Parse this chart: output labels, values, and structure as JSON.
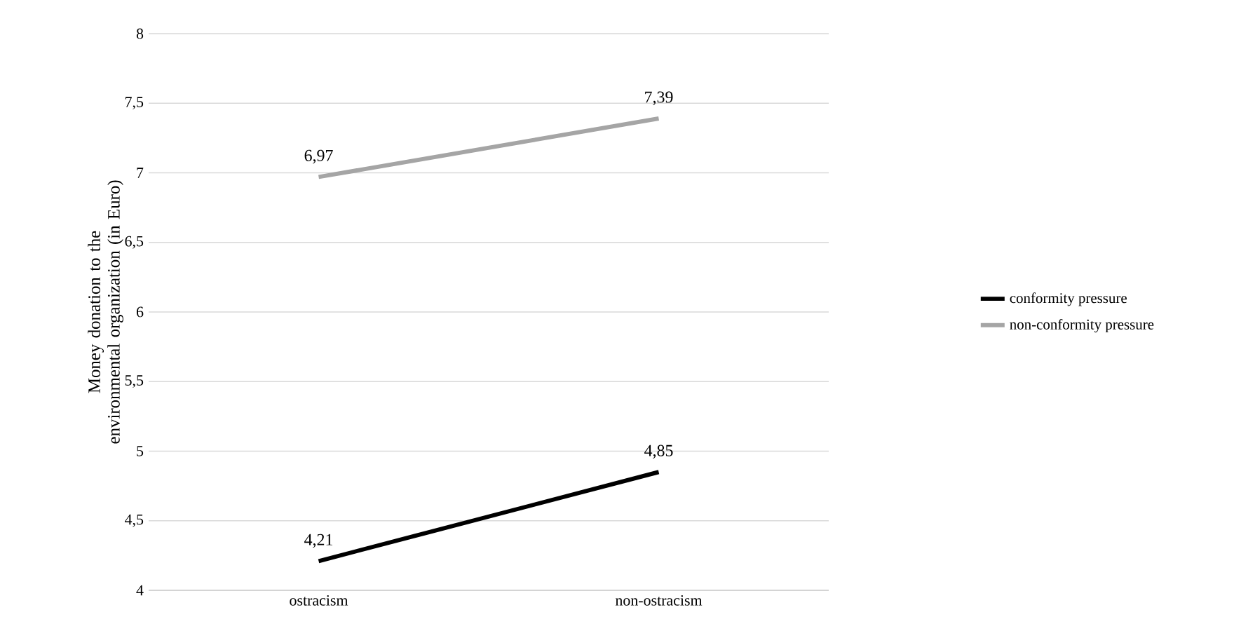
{
  "chart_data": {
    "type": "line",
    "ylabel": "Money donation to the environmental organization (in Euro)",
    "categories": [
      "ostracism",
      "non-ostracism"
    ],
    "series": [
      {
        "name": "conformity pressure",
        "color": "#000000",
        "values": [
          4.21,
          4.85
        ],
        "value_labels": [
          "4,21",
          "4,85"
        ]
      },
      {
        "name": "non-conformity pressure",
        "color": "#a5a5a5",
        "values": [
          6.97,
          7.39
        ],
        "value_labels": [
          "6,97",
          "7,39"
        ]
      }
    ],
    "ylim": [
      4,
      8
    ],
    "yticks": [
      4,
      {
        "value": 4.5,
        "label": "4,5"
      },
      5,
      {
        "value": 5.5,
        "label": "5,5"
      },
      6,
      {
        "value": 6.5,
        "label": "6,5"
      },
      7,
      {
        "value": 7.5,
        "label": "7,5"
      },
      8
    ],
    "grid": "y",
    "legend": "right",
    "marker": "none",
    "line_style": "solid"
  }
}
